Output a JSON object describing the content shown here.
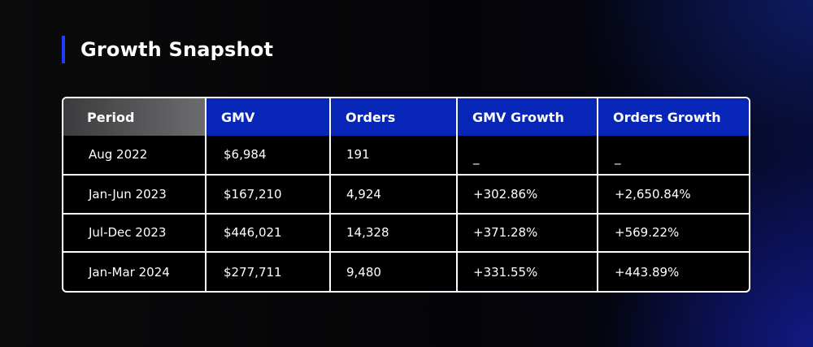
{
  "title": "Growth Snapshot",
  "table": {
    "headers": [
      "Period",
      "GMV",
      "Orders",
      "GMV Growth",
      "Orders Growth"
    ],
    "rows": [
      [
        "Aug 2022",
        "$6,984",
        "191",
        "_",
        "_"
      ],
      [
        "Jan-Jun 2023",
        "$167,210",
        "4,924",
        "+302.86%",
        "+2,650.84%"
      ],
      [
        "Jul-Dec 2023",
        "$446,021",
        "14,328",
        "+371.28%",
        "+569.22%"
      ],
      [
        "Jan-Mar 2024",
        "$277,711",
        "9,480",
        "+331.55%",
        "+443.89%"
      ]
    ]
  },
  "colors": {
    "accent": "#1f3cff",
    "header_blue": "#0726b8",
    "header_gray": "#5a5a5c",
    "background": "#050507",
    "text": "#ffffff"
  }
}
